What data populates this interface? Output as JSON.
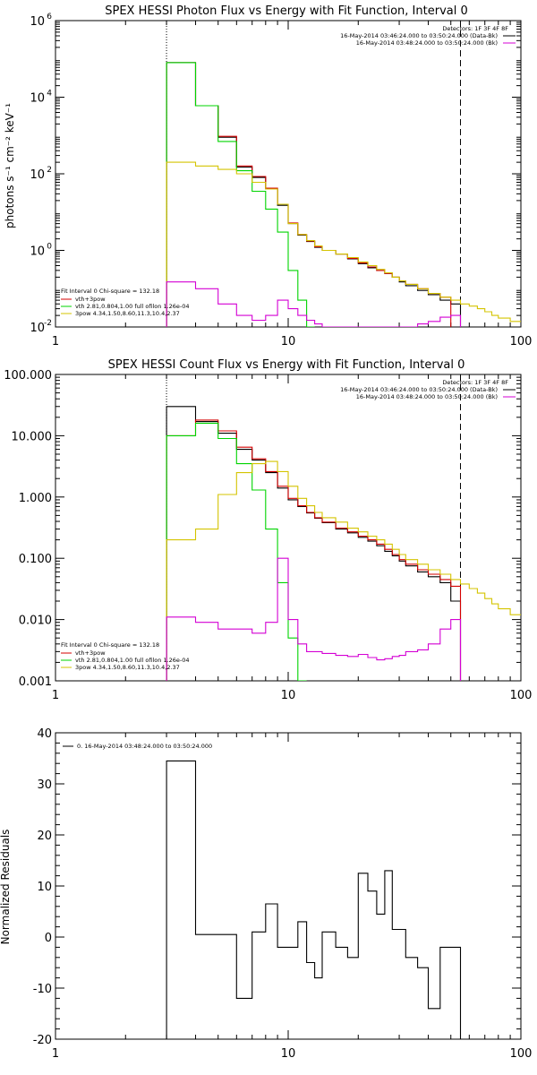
{
  "chart_data": [
    {
      "type": "line",
      "title": "SPEX HESSI Photon Flux vs Energy with Fit Function, Interval 0",
      "ylabel": "photons s⁻¹ cm⁻² keV⁻¹",
      "xlabel": "",
      "xscale": "log",
      "yscale": "log",
      "xlim": [
        1,
        100
      ],
      "ylim": [
        0.01,
        1000000
      ],
      "xticks": [
        {
          "v": 1,
          "label": "1"
        },
        {
          "v": 10,
          "label": "10"
        },
        {
          "v": 100,
          "label": "100"
        }
      ],
      "yticks": [
        {
          "v": 0.01,
          "label": "10",
          "sup": "-2"
        },
        {
          "v": 1,
          "label": "10",
          "sup": "0"
        },
        {
          "v": 100,
          "label": "10",
          "sup": "2"
        },
        {
          "v": 10000,
          "label": "10",
          "sup": "4"
        },
        {
          "v": 1000000,
          "label": "10",
          "sup": "6"
        }
      ],
      "vlines": [
        {
          "x": 3.0,
          "style": "dotted"
        },
        {
          "x": 55,
          "style": "dashed"
        }
      ],
      "legend_top": [
        "Detectors: 1F 3F 4F 8F",
        "16-May-2014 03:46:24.000 to 03:50:24.000 (Data-Bk)",
        "16-May-2014 03:48:24.000 to 03:50:24.000 (Bk)"
      ],
      "legend_top_colors": [
        "",
        "#000000",
        "#d400d4"
      ],
      "legend_bottom_title": "Fit Interval 0   Chi-square = 132.18",
      "legend_bottom": [
        "vth+3pow",
        "vth 2.81,0.804,1.00  full ofilon 1.26e-04",
        "3pow 4.34,1.50,8.60,11.3,10.4,2.37"
      ],
      "legend_bottom_colors": [
        "#d40000",
        "#00d400",
        "#d4c400"
      ],
      "edges": [
        3,
        4,
        5,
        6,
        7,
        8,
        9,
        10,
        11,
        12,
        13,
        14,
        16,
        18,
        20,
        22,
        24,
        26,
        28,
        30,
        32,
        36,
        40,
        45,
        50,
        55,
        60,
        65,
        70,
        75,
        80,
        90,
        100
      ],
      "series": [
        {
          "name": "Data-Bk",
          "color": "#000000",
          "values": [
            80000,
            6000,
            900,
            150,
            80,
            40,
            15,
            5,
            2.5,
            1.7,
            1.2,
            1,
            0.8,
            0.6,
            0.45,
            0.35,
            0.3,
            0.25,
            0.2,
            0.15,
            0.12,
            0.09,
            0.07,
            0.05,
            0.04,
            null,
            null,
            null,
            null,
            null,
            null,
            null
          ]
        },
        {
          "name": "vth+3pow",
          "color": "#d40000",
          "values": [
            80000,
            6000,
            950,
            160,
            85,
            42,
            16,
            5.2,
            2.6,
            1.75,
            1.25,
            1,
            0.8,
            0.62,
            0.47,
            0.37,
            0.3,
            0.25,
            0.2,
            0.16,
            0.13,
            0.1,
            0.075,
            0.06,
            null,
            null,
            null,
            null,
            null,
            null,
            null,
            null
          ]
        },
        {
          "name": "vth",
          "color": "#00d400",
          "values": [
            80000,
            6000,
            700,
            120,
            35,
            12,
            3,
            0.3,
            0.05,
            0.01,
            null,
            null,
            null,
            null,
            null,
            null,
            null,
            null,
            null,
            null,
            null,
            null,
            null,
            null,
            null,
            null,
            null,
            null,
            null,
            null,
            null,
            null
          ]
        },
        {
          "name": "3pow",
          "color": "#d4c400",
          "values": [
            200,
            160,
            130,
            100,
            60,
            40,
            16,
            5,
            2.6,
            1.8,
            1.3,
            1,
            0.8,
            0.65,
            0.5,
            0.4,
            0.32,
            0.26,
            0.2,
            0.16,
            0.13,
            0.1,
            0.075,
            0.06,
            0.05,
            0.04,
            0.035,
            0.03,
            0.025,
            0.02,
            0.017,
            0.014
          ]
        },
        {
          "name": "Bk",
          "color": "#d400d4",
          "values": [
            0.15,
            0.1,
            0.04,
            0.02,
            0.015,
            0.02,
            0.05,
            0.03,
            0.02,
            0.015,
            0.012,
            0.01,
            0.01,
            0.009,
            0.009,
            0.008,
            0.009,
            0.008,
            0.008,
            0.009,
            0.01,
            0.012,
            0.014,
            0.018,
            0.02,
            null,
            null,
            null,
            null,
            null,
            null,
            null
          ]
        }
      ]
    },
    {
      "type": "line",
      "title": "SPEX HESSI Count Flux vs Energy with Fit Function, Interval 0",
      "ylabel": "",
      "xlabel": "",
      "xscale": "log",
      "yscale": "log",
      "xlim": [
        1,
        100
      ],
      "ylim": [
        0.001,
        100
      ],
      "xticks": [
        {
          "v": 1,
          "label": "1"
        },
        {
          "v": 10,
          "label": "10"
        },
        {
          "v": 100,
          "label": "100"
        }
      ],
      "yticks": [
        {
          "v": 0.001,
          "label": "0.001"
        },
        {
          "v": 0.01,
          "label": "0.010"
        },
        {
          "v": 0.1,
          "label": "0.100"
        },
        {
          "v": 1,
          "label": "1.000"
        },
        {
          "v": 10,
          "label": "10.000"
        },
        {
          "v": 100,
          "label": "100.000"
        }
      ],
      "vlines": [
        {
          "x": 3.0,
          "style": "dotted"
        },
        {
          "x": 55,
          "style": "dashed"
        }
      ],
      "legend_top": [
        "Detectors: 1F 3F 4F 8F",
        "16-May-2014 03:46:24.000 to 03:50:24.000 (Data-Bk)",
        "16-May-2014 03:48:24.000 to 03:50:24.000 (Bk)"
      ],
      "legend_top_colors": [
        "",
        "#000000",
        "#d400d4"
      ],
      "legend_bottom_title": "Fit Interval 0   Chi-square = 132.18",
      "legend_bottom": [
        "vth+3pow",
        "vth 2.81,0.804,1.00  full ofilon 1.26e-04",
        "3pow 4.34,1.50,8.60,11.3,10.4,2.37"
      ],
      "legend_bottom_colors": [
        "#d40000",
        "#00d400",
        "#d4c400"
      ],
      "edges": [
        3,
        4,
        5,
        6,
        7,
        8,
        9,
        10,
        11,
        12,
        13,
        14,
        16,
        18,
        20,
        22,
        24,
        26,
        28,
        30,
        32,
        36,
        40,
        45,
        50,
        55,
        60,
        65,
        70,
        75,
        80,
        90,
        100
      ],
      "series": [
        {
          "name": "Data-Bk",
          "color": "#000000",
          "values": [
            30,
            17,
            11,
            6,
            4,
            2.5,
            1.4,
            0.9,
            0.7,
            0.55,
            0.45,
            0.38,
            0.3,
            0.26,
            0.22,
            0.19,
            0.16,
            0.13,
            0.11,
            0.09,
            0.075,
            0.06,
            0.05,
            0.04,
            0.02,
            null,
            null,
            null,
            null,
            null,
            null,
            null
          ]
        },
        {
          "name": "vth+3pow",
          "color": "#d40000",
          "values": [
            10,
            18,
            12,
            6.5,
            4.2,
            2.6,
            1.5,
            0.95,
            0.72,
            0.56,
            0.46,
            0.39,
            0.31,
            0.27,
            0.23,
            0.2,
            0.17,
            0.14,
            0.115,
            0.095,
            0.08,
            0.065,
            0.055,
            0.045,
            0.035,
            null,
            null,
            null,
            null,
            null,
            null,
            null
          ]
        },
        {
          "name": "vth",
          "color": "#00d400",
          "values": [
            10,
            16,
            9,
            3.5,
            1.3,
            0.3,
            0.04,
            0.005,
            0.001,
            null,
            null,
            null,
            null,
            null,
            null,
            null,
            null,
            null,
            null,
            null,
            null,
            null,
            null,
            null,
            null,
            null,
            null,
            null,
            null,
            null,
            null,
            null
          ]
        },
        {
          "name": "3pow",
          "color": "#d4c400",
          "values": [
            0.2,
            0.3,
            1.1,
            2.5,
            3.5,
            3.8,
            2.6,
            1.5,
            0.95,
            0.72,
            0.56,
            0.46,
            0.39,
            0.31,
            0.27,
            0.23,
            0.2,
            0.17,
            0.14,
            0.115,
            0.095,
            0.08,
            0.065,
            0.055,
            0.045,
            0.038,
            0.032,
            0.027,
            0.022,
            0.018,
            0.015,
            0.012
          ]
        },
        {
          "name": "Bk",
          "color": "#d400d4",
          "values": [
            0.011,
            0.009,
            0.007,
            0.007,
            0.006,
            0.009,
            0.1,
            0.01,
            0.004,
            0.003,
            0.003,
            0.0028,
            0.0026,
            0.0025,
            0.0027,
            0.0024,
            0.0022,
            0.0023,
            0.0025,
            0.0026,
            0.003,
            0.0032,
            0.004,
            0.007,
            0.01,
            null,
            null,
            null,
            null,
            null,
            null,
            null
          ]
        }
      ]
    },
    {
      "type": "line",
      "title": "",
      "ylabel": "Normalized Residuals",
      "xlabel": "",
      "xscale": "log",
      "yscale": "linear",
      "xlim": [
        1,
        100
      ],
      "ylim": [
        -20,
        40
      ],
      "xticks": [
        {
          "v": 1,
          "label": "1"
        },
        {
          "v": 10,
          "label": "10"
        },
        {
          "v": 100,
          "label": "100"
        }
      ],
      "yticks": [
        {
          "v": -20,
          "label": "-20"
        },
        {
          "v": -10,
          "label": "-10"
        },
        {
          "v": 0,
          "label": "0"
        },
        {
          "v": 10,
          "label": "10"
        },
        {
          "v": 20,
          "label": "20"
        },
        {
          "v": 30,
          "label": "30"
        },
        {
          "v": 40,
          "label": "40"
        }
      ],
      "vlines": [],
      "legend_top_left": "0. 16-May-2014 03:48:24.000 to 03:50:24.000",
      "edges": [
        3,
        4,
        5,
        6,
        7,
        8,
        9,
        10,
        11,
        12,
        13,
        14,
        16,
        18,
        20,
        22,
        24,
        26,
        28,
        30,
        32,
        36,
        40,
        45,
        50,
        55
      ],
      "series": [
        {
          "name": "",
          "color": "#000000",
          "values": [
            34.5,
            0.5,
            0.5,
            -12,
            1,
            6.5,
            -2,
            -2,
            3,
            -5,
            -8,
            1,
            -2,
            -4,
            12.5,
            9,
            4.5,
            13,
            1.5,
            1.5,
            -4,
            -6,
            -14,
            -2,
            -2
          ]
        }
      ]
    }
  ]
}
